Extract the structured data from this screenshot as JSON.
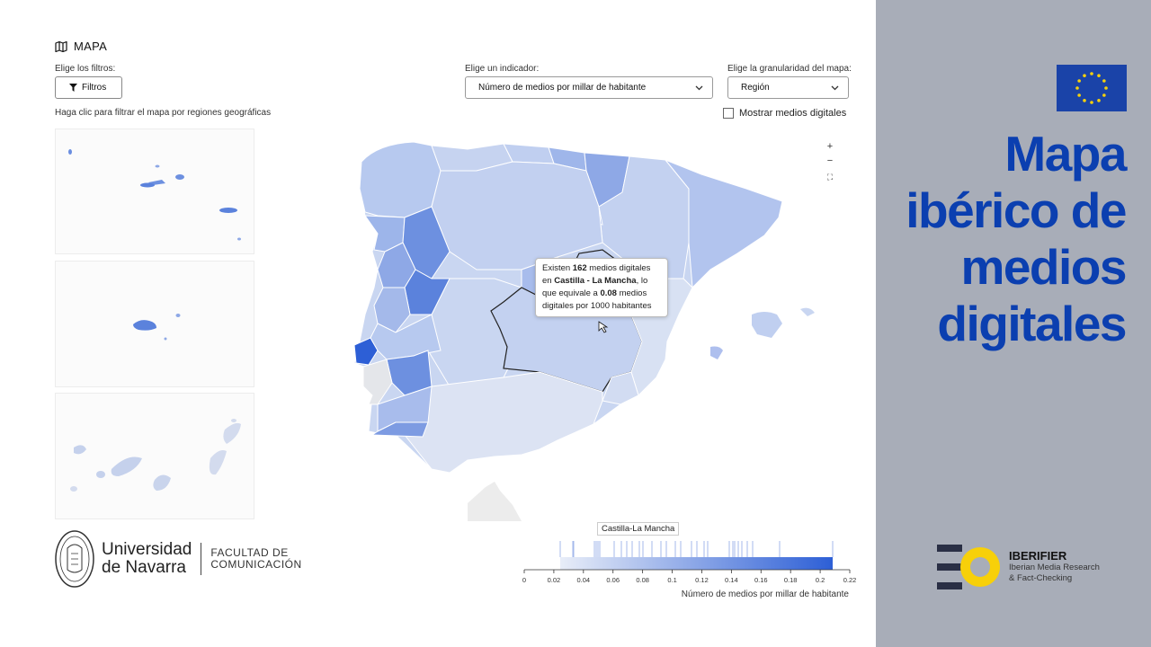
{
  "header": {
    "title": "MAPA",
    "icon": "map-icon"
  },
  "filters": {
    "label": "Elige los filtros:",
    "button_label": "Filtros",
    "hint": "Haga clic para filtrar el mapa por regiones geográficas"
  },
  "indicator": {
    "label": "Elige un indicador:",
    "selected": "Número de medios por millar de habitante"
  },
  "granularity": {
    "label": "Elige la granularidad del mapa:",
    "selected": "Región"
  },
  "digital_toggle": {
    "label": "Mostrar medios digitales",
    "checked": false
  },
  "zoom": {
    "in_label": "+",
    "out_label": "−",
    "fit_label": "⛶"
  },
  "tooltip": {
    "p1": "Existen ",
    "count": "162",
    "p2": " medios digitales en ",
    "region": "Castilla - La Mancha",
    "p3": ", lo que equivale a ",
    "ratio": "0.08",
    "p4": " medios digitales por 1000 habitantes"
  },
  "legend": {
    "selected_region": "Castilla-La Mancha",
    "ticks": [
      "0",
      "0.02",
      "0.04",
      "0.06",
      "0.08",
      "0.1",
      "0.12",
      "0.14",
      "0.16",
      "0.18",
      "0.2",
      "0.22"
    ],
    "axis_title": "Número de medios por millar de habitante",
    "color_low": "#e8edf8",
    "color_high": "#2d5fd6"
  },
  "university": {
    "name_line1": "Universidad",
    "name_line2": "de Navarra",
    "faculty_line1": "FACULTAD DE",
    "faculty_line2": "COMUNICACIÓN"
  },
  "side_panel": {
    "title_lines": [
      "Mapa",
      "ibérico de",
      "medios",
      "digitales"
    ],
    "title_color": "#0b3fb0",
    "flag_color": "#1a43a8",
    "flag_star_color": "#f6d10c"
  },
  "iberifier": {
    "name": "IBERIFIER",
    "sub_line1": "Iberian Media Research",
    "sub_line2": "& Fact-Checking",
    "accent": "#f7d009"
  }
}
